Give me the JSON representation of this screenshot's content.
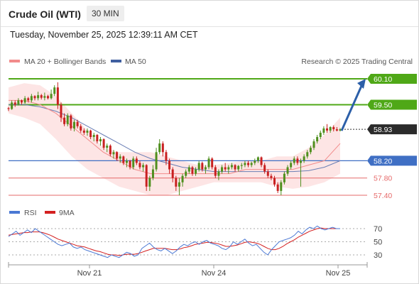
{
  "header": {
    "title": "Crude Oil (WTI)",
    "timeframe": "30 MIN"
  },
  "subtitle": "Tuesday, November 25, 2025 12:39:11 AM CET",
  "legend": {
    "bollinger": "MA 20 + Bollinger Bands",
    "ma50": "MA 50",
    "credit": "Research © 2025 Trading Central"
  },
  "rsi_legend": {
    "rsi": "RSI",
    "ma9": "9MA"
  },
  "colors": {
    "resistance": "#4fa817",
    "support": "#e66a6a",
    "pivot": "#3f6fc4",
    "bollinger_fill": "#fde0e0",
    "ma20": "#f28b8b",
    "ma50": "#6a7fb5",
    "up_candle": "#4f8f1e",
    "down_candle": "#c82020",
    "rsi": "#4a78d4",
    "rsi_ma": "#d42020",
    "arrow": "#2c5fa8"
  },
  "chart_data": [
    {
      "type": "candlestick",
      "title": "",
      "x_ticks": [
        "Nov 21",
        "Nov 24",
        "Nov 25"
      ],
      "ylim": [
        57.2,
        60.3
      ],
      "last_price": 58.93,
      "levels": [
        {
          "value": 60.1,
          "label": "60.10",
          "kind": "resistance"
        },
        {
          "value": 59.5,
          "label": "59.50",
          "kind": "resistance"
        },
        {
          "value": 58.93,
          "label": "58.93",
          "kind": "last"
        },
        {
          "value": 58.2,
          "label": "58.20",
          "kind": "pivot"
        },
        {
          "value": 57.8,
          "label": "57.80",
          "kind": "support"
        },
        {
          "value": 57.4,
          "label": "57.40",
          "kind": "support"
        }
      ],
      "forecast_arrow": {
        "from": 58.93,
        "to": 60.1
      },
      "series": [
        {
          "name": "MA 20 + Bollinger Bands",
          "ma20": [
            59.6,
            59.6,
            59.5,
            59.3,
            59.0,
            58.7,
            58.4,
            58.2,
            58.0,
            57.9,
            57.9,
            57.9,
            57.9,
            57.9,
            57.9,
            58.0,
            58.0,
            58.0,
            58.0,
            58.1,
            58.2,
            58.6
          ],
          "upper": [
            59.9,
            60.0,
            59.95,
            59.7,
            59.3,
            58.9,
            58.5,
            58.4,
            58.4,
            58.4,
            58.3,
            58.2,
            58.1,
            58.1,
            58.15,
            58.2,
            58.2,
            58.3,
            58.3,
            58.5,
            58.8,
            59.2
          ],
          "lower": [
            59.3,
            59.2,
            59.05,
            58.7,
            58.3,
            58.0,
            57.8,
            57.6,
            57.5,
            57.4,
            57.4,
            57.5,
            57.6,
            57.7,
            57.7,
            57.7,
            57.7,
            57.6,
            57.55,
            57.6,
            57.7,
            57.9
          ]
        },
        {
          "name": "MA 50",
          "values": [
            59.5,
            59.5,
            59.45,
            59.35,
            59.2,
            59.0,
            58.8,
            58.6,
            58.4,
            58.25,
            58.15,
            58.05,
            58.0,
            57.95,
            57.95,
            57.95,
            57.95,
            57.95,
            57.95,
            57.97,
            58.05,
            58.2
          ]
        }
      ],
      "candles": [
        [
          59.42,
          59.45,
          59.35,
          59.4
        ],
        [
          59.4,
          59.6,
          59.38,
          59.55
        ],
        [
          59.55,
          59.6,
          59.45,
          59.5
        ],
        [
          59.5,
          59.65,
          59.48,
          59.6
        ],
        [
          59.6,
          59.62,
          59.5,
          59.55
        ],
        [
          59.55,
          59.7,
          59.52,
          59.65
        ],
        [
          59.65,
          59.68,
          59.55,
          59.6
        ],
        [
          59.6,
          59.75,
          59.55,
          59.7
        ],
        [
          59.7,
          59.72,
          59.6,
          59.65
        ],
        [
          59.65,
          59.8,
          59.6,
          59.72
        ],
        [
          59.72,
          59.75,
          59.62,
          59.66
        ],
        [
          59.66,
          59.78,
          59.6,
          59.7
        ],
        [
          59.7,
          59.73,
          59.62,
          59.65
        ],
        [
          59.65,
          59.85,
          59.62,
          59.75
        ],
        [
          59.75,
          59.95,
          59.7,
          59.9
        ],
        [
          59.9,
          60.02,
          59.4,
          59.5
        ],
        [
          59.5,
          59.55,
          59.1,
          59.2
        ],
        [
          59.2,
          59.3,
          59.0,
          59.05
        ],
        [
          59.05,
          59.3,
          59.0,
          59.25
        ],
        [
          59.25,
          59.28,
          58.9,
          58.95
        ],
        [
          58.95,
          59.15,
          58.88,
          59.1
        ],
        [
          59.1,
          59.15,
          58.95,
          59.0
        ],
        [
          59.0,
          59.05,
          58.85,
          58.9
        ],
        [
          58.9,
          58.95,
          58.8,
          58.85
        ],
        [
          58.85,
          58.95,
          58.78,
          58.9
        ],
        [
          58.9,
          58.92,
          58.7,
          58.75
        ],
        [
          58.75,
          58.85,
          58.65,
          58.8
        ],
        [
          58.8,
          58.82,
          58.6,
          58.65
        ],
        [
          58.65,
          58.75,
          58.55,
          58.7
        ],
        [
          58.7,
          58.72,
          58.45,
          58.5
        ],
        [
          58.5,
          58.6,
          58.4,
          58.55
        ],
        [
          58.55,
          58.58,
          58.3,
          58.35
        ],
        [
          58.35,
          58.45,
          58.25,
          58.4
        ],
        [
          58.4,
          58.42,
          58.2,
          58.25
        ],
        [
          58.25,
          58.35,
          58.15,
          58.3
        ],
        [
          58.3,
          58.32,
          58.1,
          58.15
        ],
        [
          58.15,
          58.25,
          58.05,
          58.2
        ],
        [
          58.2,
          58.22,
          58.0,
          58.05
        ],
        [
          58.05,
          58.3,
          58.0,
          58.25
        ],
        [
          58.25,
          58.3,
          58.1,
          58.15
        ],
        [
          58.15,
          58.2,
          58.0,
          58.05
        ],
        [
          58.05,
          58.15,
          57.95,
          58.1
        ],
        [
          58.1,
          58.12,
          57.5,
          57.6
        ],
        [
          57.6,
          57.85,
          57.5,
          57.8
        ],
        [
          57.8,
          58.1,
          57.75,
          58.0
        ],
        [
          58.0,
          58.5,
          57.95,
          58.4
        ],
        [
          58.4,
          58.7,
          58.35,
          58.6
        ],
        [
          58.6,
          58.65,
          58.3,
          58.4
        ],
        [
          58.4,
          58.45,
          58.1,
          58.2
        ],
        [
          58.2,
          58.25,
          57.9,
          58.0
        ],
        [
          58.0,
          58.05,
          57.7,
          57.8
        ],
        [
          57.8,
          57.85,
          57.5,
          57.6
        ],
        [
          57.6,
          57.8,
          57.4,
          57.7
        ],
        [
          57.7,
          57.9,
          57.6,
          57.85
        ],
        [
          57.85,
          58.0,
          57.8,
          57.95
        ],
        [
          57.95,
          58.1,
          57.9,
          58.05
        ],
        [
          58.05,
          58.08,
          57.85,
          57.9
        ],
        [
          57.9,
          58.05,
          57.85,
          58.0
        ],
        [
          58.0,
          58.2,
          57.95,
          58.15
        ],
        [
          58.15,
          58.18,
          57.95,
          58.0
        ],
        [
          58.0,
          58.1,
          57.9,
          58.05
        ],
        [
          58.05,
          58.3,
          58.0,
          58.25
        ],
        [
          58.25,
          58.28,
          58.0,
          58.05
        ],
        [
          58.05,
          58.1,
          57.8,
          57.85
        ],
        [
          57.85,
          58.0,
          57.75,
          57.95
        ],
        [
          57.95,
          58.1,
          57.9,
          58.05
        ],
        [
          58.05,
          58.15,
          57.95,
          58.0
        ],
        [
          58.0,
          58.1,
          57.9,
          58.05
        ],
        [
          58.05,
          58.15,
          58.0,
          58.1
        ],
        [
          58.1,
          58.12,
          57.95,
          58.0
        ],
        [
          58.0,
          58.1,
          57.95,
          58.08
        ],
        [
          58.08,
          58.15,
          58.0,
          58.1
        ],
        [
          58.1,
          58.2,
          58.05,
          58.15
        ],
        [
          58.15,
          58.2,
          58.05,
          58.1
        ],
        [
          58.1,
          58.18,
          58.05,
          58.15
        ],
        [
          58.15,
          58.25,
          58.1,
          58.2
        ],
        [
          58.2,
          58.3,
          58.15,
          58.28
        ],
        [
          58.28,
          58.3,
          58.05,
          58.1
        ],
        [
          58.1,
          58.15,
          57.9,
          57.95
        ],
        [
          57.95,
          58.0,
          57.8,
          57.85
        ],
        [
          57.85,
          57.9,
          57.75,
          57.8
        ],
        [
          57.8,
          57.85,
          57.6,
          57.65
        ],
        [
          57.65,
          57.7,
          57.45,
          57.5
        ],
        [
          57.5,
          57.75,
          57.4,
          57.7
        ],
        [
          57.7,
          57.95,
          57.65,
          57.9
        ],
        [
          57.9,
          58.1,
          57.85,
          58.05
        ],
        [
          58.05,
          58.2,
          58.0,
          58.15
        ],
        [
          58.15,
          58.3,
          58.1,
          58.25
        ],
        [
          58.25,
          58.3,
          58.1,
          58.15
        ],
        [
          58.15,
          58.25,
          57.6,
          58.2
        ],
        [
          58.2,
          58.35,
          58.15,
          58.3
        ],
        [
          58.3,
          58.45,
          58.25,
          58.4
        ],
        [
          58.4,
          58.55,
          58.35,
          58.5
        ],
        [
          58.5,
          58.7,
          58.45,
          58.65
        ],
        [
          58.65,
          58.8,
          58.6,
          58.75
        ],
        [
          58.75,
          58.9,
          58.7,
          58.85
        ],
        [
          58.85,
          59.0,
          58.8,
          58.95
        ],
        [
          58.95,
          59.05,
          58.85,
          58.9
        ],
        [
          58.9,
          59.0,
          58.85,
          58.98
        ],
        [
          58.98,
          59.02,
          58.88,
          58.93
        ],
        [
          58.93,
          58.98,
          58.88,
          58.9
        ],
        [
          58.9,
          58.96,
          58.88,
          58.93
        ]
      ]
    },
    {
      "type": "line",
      "title": "",
      "ylim": [
        20,
        80
      ],
      "y_ticks": [
        70,
        50,
        30
      ],
      "series": [
        {
          "name": "RSI",
          "values": [
            58,
            62,
            66,
            60,
            64,
            68,
            64,
            70,
            66,
            62,
            58,
            54,
            50,
            46,
            44,
            46,
            48,
            42,
            40,
            42,
            38,
            36,
            34,
            32,
            30,
            28,
            26,
            30,
            28,
            26,
            30,
            34,
            32,
            28,
            30,
            40,
            44,
            48,
            42,
            38,
            36,
            40,
            36,
            32,
            36,
            42,
            46,
            44,
            48,
            50,
            46,
            50,
            52,
            48,
            46,
            44,
            40,
            38,
            42,
            50,
            46,
            50,
            54,
            48,
            44,
            46,
            40,
            34,
            30,
            38,
            44,
            50,
            52,
            54,
            56,
            60,
            66,
            62,
            68,
            72,
            70,
            74,
            70,
            68,
            70,
            72,
            70,
            70
          ]
        },
        {
          "name": "9MA",
          "values": [
            60,
            61,
            62,
            63,
            64,
            64,
            65,
            65,
            65,
            64,
            62,
            60,
            57,
            54,
            52,
            50,
            48,
            46,
            44,
            43,
            42,
            40,
            38,
            36,
            35,
            33,
            31,
            30,
            30,
            29,
            30,
            31,
            31,
            31,
            32,
            34,
            36,
            38,
            40,
            40,
            40,
            40,
            39,
            38,
            38,
            39,
            41,
            42,
            44,
            46,
            47,
            48,
            49,
            49,
            48,
            47,
            45,
            43,
            43,
            44,
            45,
            47,
            49,
            50,
            49,
            48,
            46,
            43,
            40,
            38,
            38,
            40,
            43,
            47,
            50,
            53,
            57,
            60,
            63,
            66,
            68,
            70,
            71,
            70,
            70,
            70,
            70,
            70
          ]
        }
      ],
      "reference_lines": [
        70,
        50,
        30
      ]
    }
  ]
}
